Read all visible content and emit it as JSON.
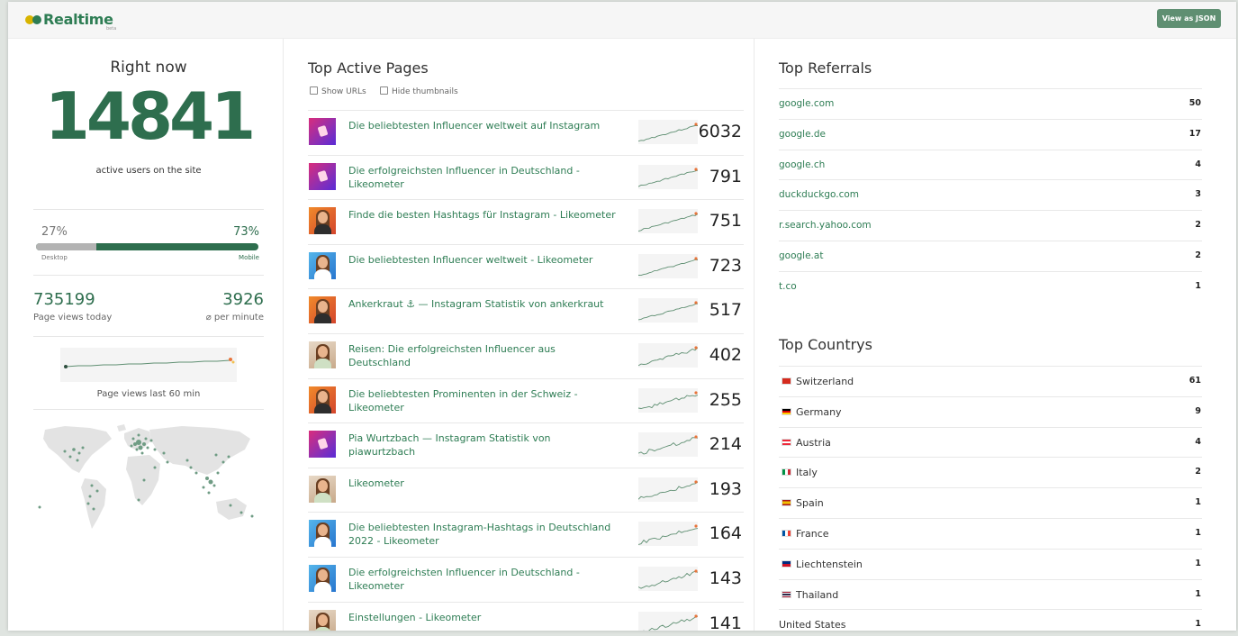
{
  "header": {
    "logo_name": "Realtime",
    "logo_badge": "beta",
    "json_button": "View as JSON"
  },
  "summary": {
    "title": "Right now",
    "active_users": "14841",
    "active_label": "active users on the site",
    "desktop_pct": "27%",
    "mobile_pct": "73%",
    "desktop_share": 27,
    "desktop_label": "Desktop",
    "mobile_label": "Mobile",
    "pageviews_today": "735199",
    "pageviews_today_label": "Page views today",
    "per_minute": "3926",
    "per_minute_label": "⌀ per minute",
    "sparkline_label": "Page views last 60 min"
  },
  "pages": {
    "title": "Top Active Pages",
    "opt_show_urls": "Show URLs",
    "opt_hide_thumbnails": "Hide thumbnails",
    "items": [
      {
        "title": "Die beliebtesten Influencer weltweit auf Instagram",
        "count": "6032",
        "thumb": "insta"
      },
      {
        "title": "Die erfolgreichsten Influencer in Deutschland - Likeometer",
        "count": "791",
        "thumb": "insta"
      },
      {
        "title": "Finde die besten Hashtags für Instagram - Likeometer",
        "count": "751",
        "thumb": "orange"
      },
      {
        "title": "Die beliebtesten Influencer weltweit - Likeometer",
        "count": "723",
        "thumb": "blue"
      },
      {
        "title": "Ankerkraut ⚓ — Instagram Statistik von ankerkraut",
        "count": "517",
        "thumb": "orange"
      },
      {
        "title": "Reisen: Die erfolgreichsten Influencer aus Deutschland",
        "count": "402",
        "thumb": "photo"
      },
      {
        "title": "Die beliebtesten Prominenten in der Schweiz - Likeometer",
        "count": "255",
        "thumb": "orange"
      },
      {
        "title": "Pia Wurtzbach — Instagram Statistik von piawurtzbach",
        "count": "214",
        "thumb": "insta"
      },
      {
        "title": "Likeometer",
        "count": "193",
        "thumb": "photo"
      },
      {
        "title": "Die beliebtesten Instagram-Hashtags in Deutschland 2022 - Likeometer",
        "count": "164",
        "thumb": "blue"
      },
      {
        "title": "Die erfolgreichsten Influencer in Deutschland - Likeometer",
        "count": "143",
        "thumb": "blue"
      },
      {
        "title": "Einstellungen - Likeometer",
        "count": "141",
        "thumb": "photo"
      }
    ]
  },
  "referrals": {
    "title": "Top Referrals",
    "items": [
      {
        "label": "google.com",
        "count": "50"
      },
      {
        "label": "google.de",
        "count": "17"
      },
      {
        "label": "google.ch",
        "count": "4"
      },
      {
        "label": "duckduckgo.com",
        "count": "3"
      },
      {
        "label": "r.search.yahoo.com",
        "count": "2"
      },
      {
        "label": "google.at",
        "count": "2"
      },
      {
        "label": "t.co",
        "count": "1"
      }
    ]
  },
  "countries": {
    "title": "Top Countrys",
    "items": [
      {
        "label": "Switzerland",
        "count": "61",
        "flag": "ch"
      },
      {
        "label": "Germany",
        "count": "9",
        "flag": "de"
      },
      {
        "label": "Austria",
        "count": "4",
        "flag": "at"
      },
      {
        "label": "Italy",
        "count": "2",
        "flag": "it"
      },
      {
        "label": "Spain",
        "count": "1",
        "flag": "es"
      },
      {
        "label": "France",
        "count": "1",
        "flag": "fr"
      },
      {
        "label": "Liechtenstein",
        "count": "1",
        "flag": "li"
      },
      {
        "label": "Thailand",
        "count": "1",
        "flag": "th"
      },
      {
        "label": "United States",
        "count": "1",
        "flag": ""
      }
    ]
  },
  "colors": {
    "brand_green": "#2e6e4e",
    "link_green": "#2e7d54",
    "button_green": "#5f8f72",
    "logo_yellow": "#d8b400"
  }
}
